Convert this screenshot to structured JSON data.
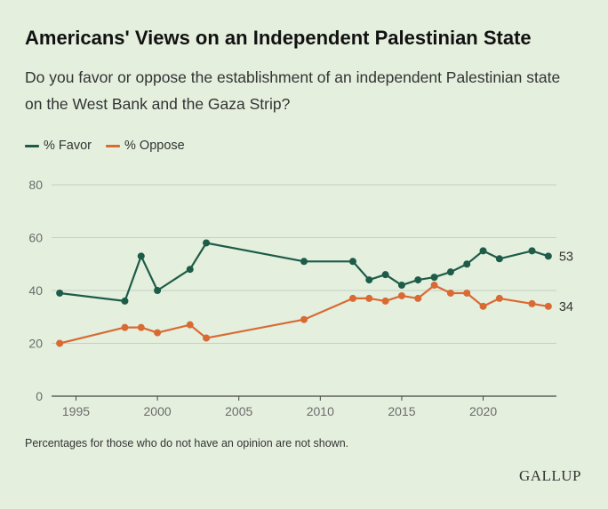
{
  "header": {
    "title": "Americans' Views on an Independent Palestinian State",
    "subtitle": "Do you favor or oppose the establishment of an independent Palestinian state on the West Bank and the Gaza Strip?"
  },
  "legend": {
    "favor_label": "% Favor",
    "oppose_label": "% Oppose"
  },
  "footnote": "Percentages for those who do not have an opinion are not shown.",
  "brand": "GALLUP",
  "colors": {
    "favor": "#1d5c48",
    "oppose": "#d96a33",
    "grid": "#c5d1c0",
    "axis": "#444444",
    "tick": "#6b6b6b"
  },
  "chart_data": {
    "type": "line",
    "title": "Americans' Views on an Independent Palestinian State",
    "xlabel": "",
    "ylabel": "",
    "xlim": [
      1993.5,
      2024.5
    ],
    "ylim": [
      0,
      80
    ],
    "grid": true,
    "legend_position": "top-left",
    "x_ticks": [
      1995,
      2000,
      2005,
      2010,
      2015,
      2020
    ],
    "y_ticks": [
      0,
      20,
      40,
      60,
      80
    ],
    "series": [
      {
        "name": "% Favor",
        "color": "#1d5c48",
        "end_label": "53",
        "points": [
          {
            "x": 1994,
            "y": 39
          },
          {
            "x": 1998,
            "y": 36
          },
          {
            "x": 1999,
            "y": 53
          },
          {
            "x": 2000,
            "y": 40
          },
          {
            "x": 2002,
            "y": 48
          },
          {
            "x": 2003,
            "y": 58
          },
          {
            "x": 2009,
            "y": 51
          },
          {
            "x": 2012,
            "y": 51
          },
          {
            "x": 2013,
            "y": 44
          },
          {
            "x": 2014,
            "y": 46
          },
          {
            "x": 2015,
            "y": 42
          },
          {
            "x": 2016,
            "y": 44
          },
          {
            "x": 2017,
            "y": 45
          },
          {
            "x": 2018,
            "y": 47
          },
          {
            "x": 2019,
            "y": 50
          },
          {
            "x": 2020,
            "y": 55
          },
          {
            "x": 2021,
            "y": 52
          },
          {
            "x": 2023,
            "y": 55
          },
          {
            "x": 2024,
            "y": 53
          }
        ]
      },
      {
        "name": "% Oppose",
        "color": "#d96a33",
        "end_label": "34",
        "points": [
          {
            "x": 1994,
            "y": 20
          },
          {
            "x": 1998,
            "y": 26
          },
          {
            "x": 1999,
            "y": 26
          },
          {
            "x": 2000,
            "y": 24
          },
          {
            "x": 2002,
            "y": 27
          },
          {
            "x": 2003,
            "y": 22
          },
          {
            "x": 2009,
            "y": 29
          },
          {
            "x": 2012,
            "y": 37
          },
          {
            "x": 2013,
            "y": 37
          },
          {
            "x": 2014,
            "y": 36
          },
          {
            "x": 2015,
            "y": 38
          },
          {
            "x": 2016,
            "y": 37
          },
          {
            "x": 2017,
            "y": 42
          },
          {
            "x": 2018,
            "y": 39
          },
          {
            "x": 2019,
            "y": 39
          },
          {
            "x": 2020,
            "y": 34
          },
          {
            "x": 2021,
            "y": 37
          },
          {
            "x": 2023,
            "y": 35
          },
          {
            "x": 2024,
            "y": 34
          }
        ]
      }
    ]
  }
}
